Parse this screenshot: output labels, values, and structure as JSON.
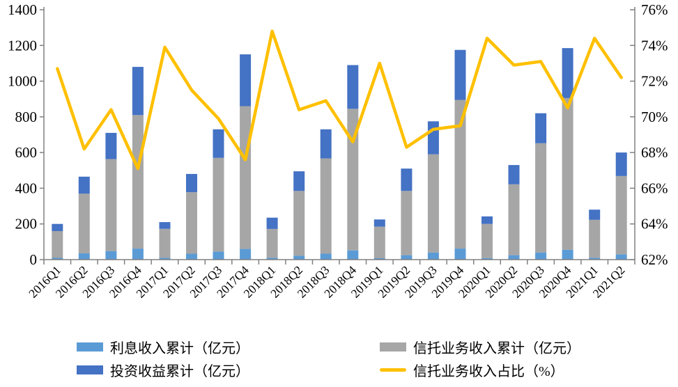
{
  "chart_data": {
    "type": "bar",
    "subtype": "stacked-bars-with-line-dual-axis",
    "title": "",
    "categories": [
      "2016Q1",
      "2016Q2",
      "2016Q3",
      "2016Q4",
      "2017Q1",
      "2017Q2",
      "2017Q3",
      "2017Q4",
      "2018Q1",
      "2018Q2",
      "2018Q3",
      "2018Q4",
      "2019Q1",
      "2019Q2",
      "2019Q3",
      "2019Q4",
      "2020Q1",
      "2020Q2",
      "2020Q3",
      "2020Q4",
      "2021Q1",
      "2021Q2"
    ],
    "series": [
      {
        "name": "利息收入累计（亿元）",
        "type": "bar",
        "stack_order": 1,
        "color": "#5B9BD5",
        "values": [
          10,
          35,
          48,
          62,
          10,
          33,
          45,
          60,
          10,
          22,
          33,
          52,
          8,
          25,
          40,
          62,
          8,
          25,
          40,
          55,
          10,
          30
        ]
      },
      {
        "name": "信托业务收入累计（亿元）",
        "type": "bar",
        "stack_order": 2,
        "color": "#A6A6A6",
        "values": [
          150,
          335,
          515,
          748,
          162,
          345,
          525,
          800,
          162,
          363,
          534,
          793,
          177,
          360,
          550,
          833,
          192,
          397,
          612,
          850,
          213,
          438
        ]
      },
      {
        "name": "投资收益累计（亿元）",
        "type": "bar",
        "stack_order": 3,
        "color": "#4472C4",
        "values": [
          40,
          95,
          147,
          270,
          38,
          102,
          160,
          290,
          63,
          110,
          163,
          245,
          40,
          125,
          185,
          280,
          42,
          108,
          168,
          280,
          57,
          132
        ]
      },
      {
        "name": "信托业务收入占比（%）",
        "type": "line",
        "axis": "right",
        "color": "#FFC000",
        "values": [
          72.7,
          68.2,
          70.4,
          67.1,
          73.9,
          71.5,
          69.9,
          67.6,
          74.8,
          70.4,
          70.9,
          68.6,
          73.0,
          68.3,
          69.3,
          69.5,
          74.4,
          72.9,
          73.1,
          70.5,
          74.4,
          72.2
        ]
      }
    ],
    "y_axis_left": {
      "min": 0,
      "max": 1400,
      "step": 200,
      "labels": [
        "0",
        "200",
        "400",
        "600",
        "800",
        "1000",
        "1200",
        "1400"
      ]
    },
    "y_axis_right": {
      "min": 62,
      "max": 76,
      "step": 2,
      "labels": [
        "62%",
        "64%",
        "66%",
        "68%",
        "70%",
        "72%",
        "74%",
        "76%"
      ]
    },
    "grid": false,
    "legend_position": "bottom"
  },
  "legend": {
    "items": [
      {
        "label": "利息收入累计（亿元）",
        "swatch": "bar",
        "color": "#5B9BD5"
      },
      {
        "label": "信托业务收入累计（亿元）",
        "swatch": "bar",
        "color": "#A6A6A6"
      },
      {
        "label": "投资收益累计（亿元）",
        "swatch": "bar",
        "color": "#4472C4"
      },
      {
        "label": "信托业务收入占比（%）",
        "swatch": "line",
        "color": "#FFC000"
      }
    ]
  },
  "colors": {
    "axis": "#808080",
    "text": "#000000",
    "background": "#FFFFFF"
  }
}
